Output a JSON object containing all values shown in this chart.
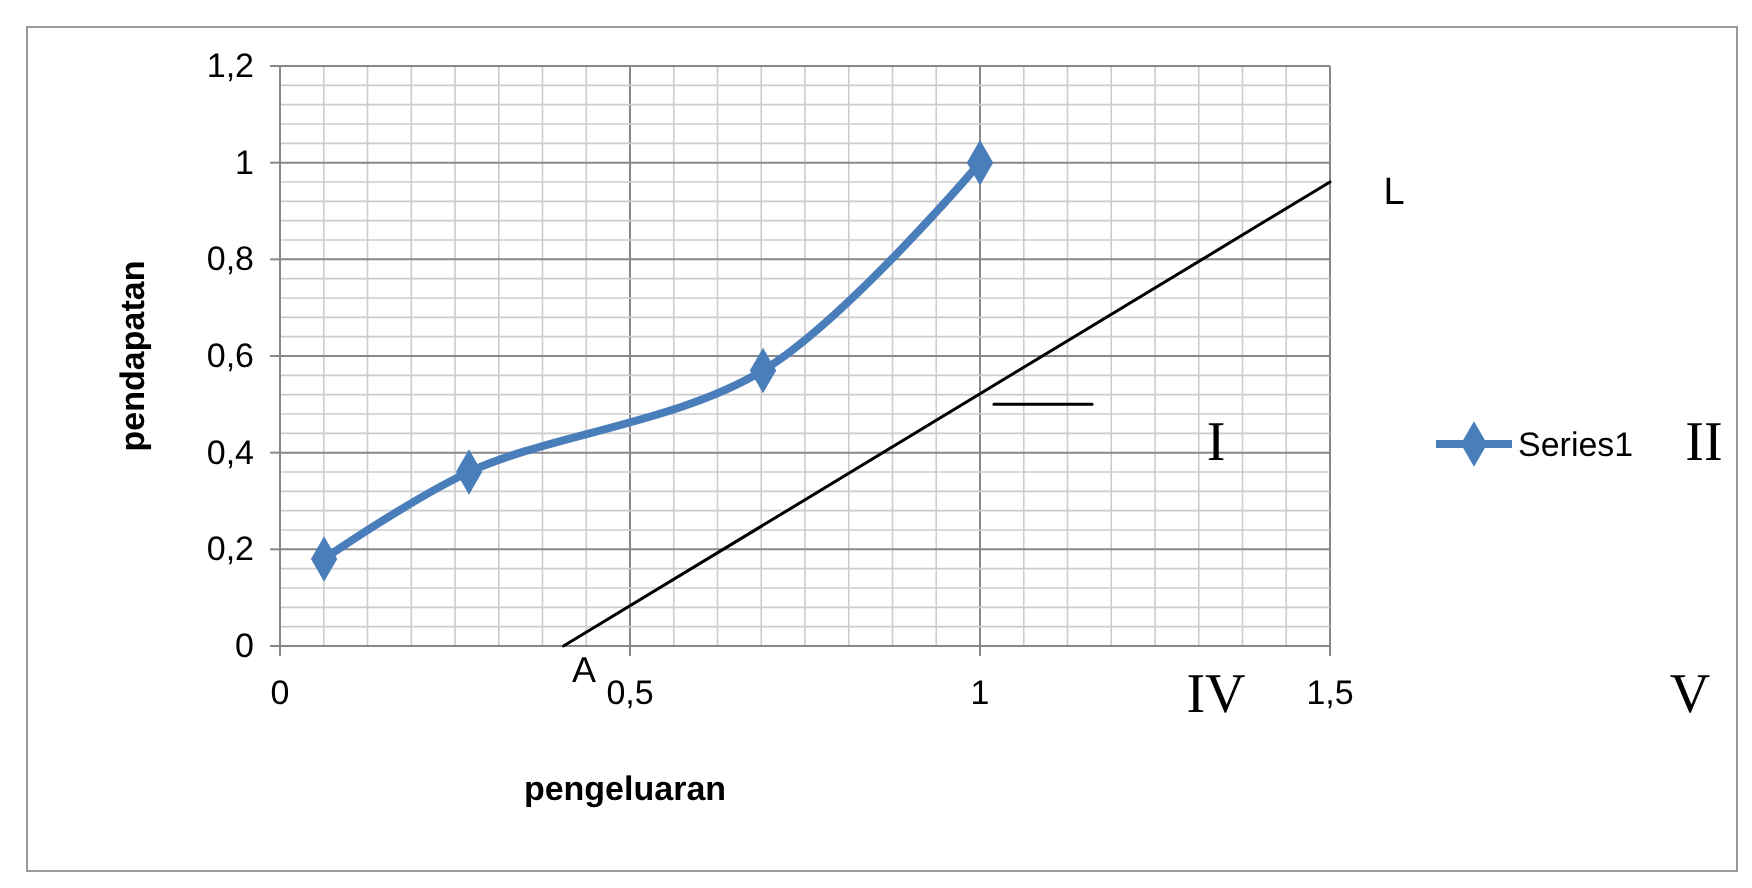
{
  "chart_data": {
    "type": "line",
    "xlabel": "pengeluaran",
    "ylabel": "pendapatan",
    "xlim": [
      0,
      1.5
    ],
    "ylim": [
      0,
      1.2
    ],
    "xticks": [
      0,
      {
        "value": 0.5,
        "label": "0,5"
      },
      1,
      {
        "value": 1.5,
        "label": "1,5"
      }
    ],
    "yticks": [
      0,
      {
        "value": 0.2,
        "label": "0,2"
      },
      {
        "value": 0.4,
        "label": "0,4"
      },
      {
        "value": 0.6,
        "label": "0,6"
      },
      {
        "value": 0.8,
        "label": "0,8"
      },
      1,
      {
        "value": 1.2,
        "label": "1,2"
      }
    ],
    "grid": true,
    "legend": "right",
    "marker": "diamond",
    "series": [
      {
        "name": "Series1",
        "type": "line",
        "color": "#4a7ebb",
        "x": [
          0.063,
          0.27,
          0.69,
          1.0
        ],
        "values": [
          0.18,
          0.36,
          0.57,
          1.0
        ]
      },
      {
        "color": "#000000",
        "marker": "none",
        "x": [
          0.405,
          1.5
        ],
        "values": [
          0,
          0.96
        ]
      },
      {
        "color": "#000000",
        "marker": "none",
        "x": [
          1.02,
          1.16
        ],
        "values": [
          0.5,
          0.5
        ]
      }
    ],
    "annotations": [
      "A",
      "L",
      "I",
      "II",
      "IV",
      "V"
    ]
  }
}
